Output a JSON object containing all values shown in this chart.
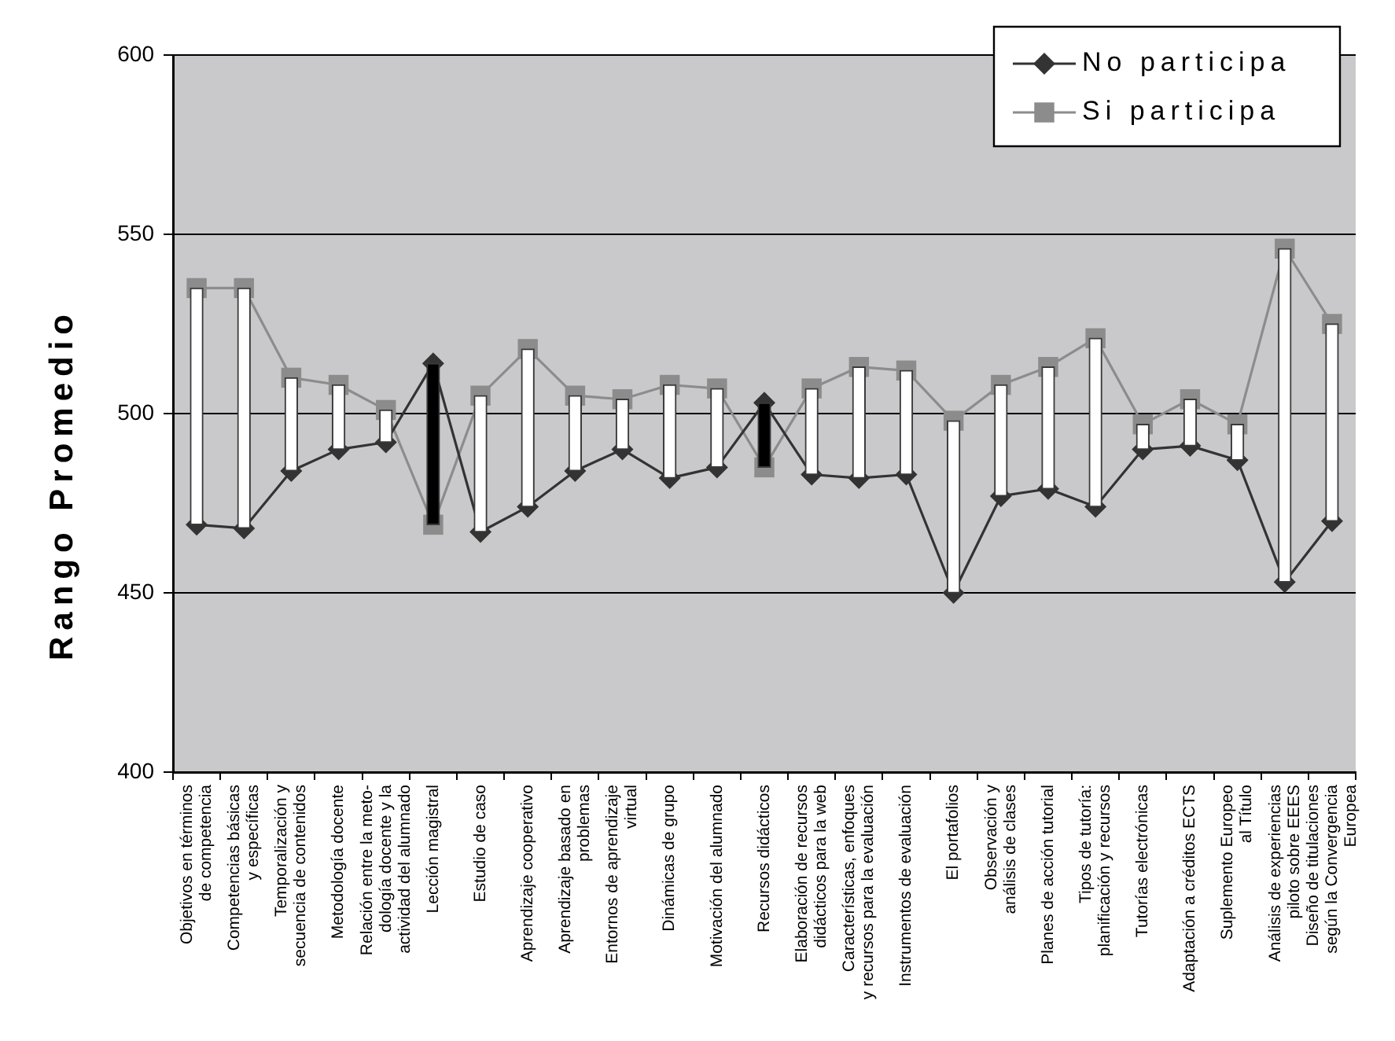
{
  "chart_data": {
    "type": "line",
    "ylabel": "Rango Promedio",
    "categories": [
      "Objetivos en términos\nde competencia",
      "Competencias básicas\ny específicas",
      "Temporalización y\nsecuencia de contenidos",
      "Metodología docente",
      "Relación entre la meto-\ndología docente y la\nactividad del alumnado",
      "Lección magistral",
      "Estudio de caso",
      "Aprendizaje cooperativo",
      "Aprendizaje basado en\nproblemas",
      "Entornos de aprendizaje\nvirtual",
      "Dinámicas de grupo",
      "Motivación del alumnado",
      "Recursos didácticos",
      "Elaboración de recursos\ndidácticos para la web",
      "Características, enfoques\ny recursos para la evaluación",
      "Instrumentos de evaluación",
      "El portafolios",
      "Observación y\nanálisis de clases",
      "Planes de acción tutorial",
      "Tipos de tutoría:\nplanificación y recursos",
      "Tutorías electrónicas",
      "Adaptación a créditos ECTS",
      "Suplemento Europeo\nal Título",
      "Análisis de experiencias\npiloto sobre EEES",
      "Diseño de titulaciones\nsegún la Convergencia\nEuropea"
    ],
    "ylim": [
      400,
      600
    ],
    "yticks": [
      400,
      450,
      500,
      550,
      600
    ],
    "grid": "y",
    "legend": "top right",
    "series": [
      {
        "type": "bar",
        "base": [
          469,
          468,
          484,
          490,
          492,
          514,
          467,
          474,
          484,
          490,
          482,
          485,
          503,
          483,
          482,
          483,
          450,
          477,
          479,
          474,
          490,
          491,
          487,
          453,
          470
        ],
        "values": [
          66,
          67,
          26,
          18,
          9,
          -45,
          38,
          44,
          21,
          14,
          26,
          22,
          -18,
          24,
          31,
          29,
          48,
          31,
          34,
          47,
          7,
          13,
          10,
          93,
          55
        ],
        "colors": [
          "#ffffff",
          "#ffffff",
          "#ffffff",
          "#ffffff",
          "#ffffff",
          "#000000",
          "#ffffff",
          "#ffffff",
          "#ffffff",
          "#ffffff",
          "#ffffff",
          "#ffffff",
          "#000000",
          "#ffffff",
          "#ffffff",
          "#ffffff",
          "#ffffff",
          "#ffffff",
          "#ffffff",
          "#ffffff",
          "#ffffff",
          "#ffffff",
          "#ffffff",
          "#ffffff",
          "#ffffff"
        ]
      },
      {
        "name": "No participa",
        "color": "#333333",
        "marker": "diamond",
        "values": [
          469,
          468,
          484,
          490,
          492,
          514,
          467,
          474,
          484,
          490,
          482,
          485,
          503,
          483,
          482,
          483,
          450,
          477,
          479,
          474,
          490,
          491,
          487,
          453,
          470
        ]
      },
      {
        "name": "Si participa",
        "color": "#8c8c8c",
        "marker": "square",
        "values": [
          535,
          535,
          510,
          508,
          501,
          469,
          505,
          518,
          505,
          504,
          508,
          507,
          485,
          507,
          513,
          512,
          498,
          508,
          513,
          521,
          497,
          504,
          497,
          546,
          525
        ]
      }
    ]
  }
}
